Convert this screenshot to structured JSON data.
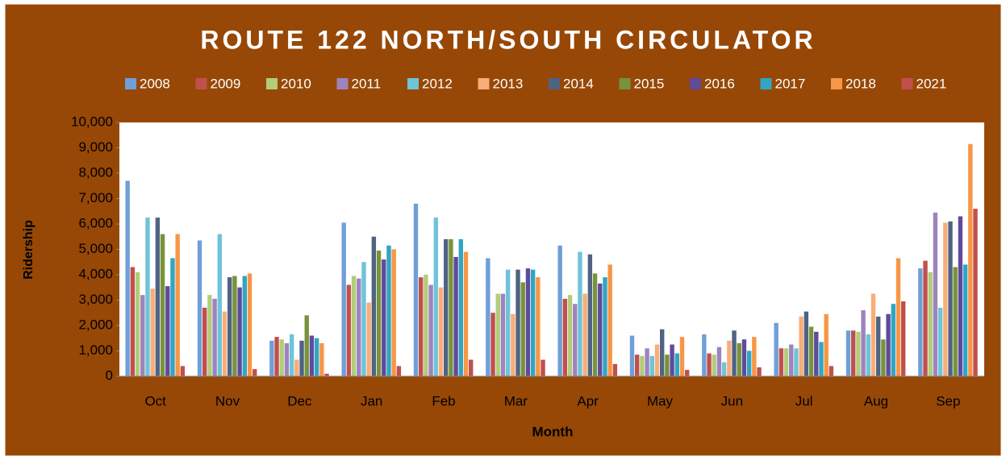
{
  "chart_data": {
    "type": "bar",
    "title": "ROUTE 122  NORTH/SOUTH CIRCULATOR",
    "x_label": "Month",
    "y_label": "Ridership",
    "categories": [
      "Oct",
      "Nov",
      "Dec",
      "Jan",
      "Feb",
      "Mar",
      "Apr",
      "May",
      "Jun",
      "Jul",
      "Aug",
      "Sep"
    ],
    "series": [
      {
        "name": "2008",
        "color": "#6f9fd8",
        "values": [
          7700,
          5350,
          1400,
          6050,
          6800,
          4650,
          5150,
          1600,
          1650,
          2100,
          1800,
          4250
        ]
      },
      {
        "name": "2009",
        "color": "#c0504d",
        "values": [
          4300,
          2700,
          1550,
          3600,
          3900,
          2500,
          3050,
          850,
          900,
          1100,
          1800,
          4550
        ]
      },
      {
        "name": "2010",
        "color": "#b3cc7a",
        "values": [
          4100,
          3200,
          1450,
          3950,
          4000,
          3250,
          3200,
          800,
          850,
          1100,
          1750,
          4100
        ]
      },
      {
        "name": "2011",
        "color": "#9d84bd",
        "values": [
          3200,
          3050,
          1300,
          3850,
          3600,
          3250,
          2850,
          1100,
          1150,
          1250,
          2600,
          6450
        ]
      },
      {
        "name": "2012",
        "color": "#6ec4d9",
        "values": [
          6250,
          5600,
          1650,
          4500,
          6250,
          4200,
          4900,
          800,
          550,
          1100,
          1650,
          2700
        ]
      },
      {
        "name": "2013",
        "color": "#f9ad78",
        "values": [
          3450,
          2550,
          650,
          2900,
          3500,
          2450,
          3250,
          1250,
          1400,
          2350,
          3250,
          6050
        ]
      },
      {
        "name": "2014",
        "color": "#4f6382",
        "values": [
          6250,
          3900,
          1400,
          5500,
          5400,
          4200,
          4800,
          1850,
          1800,
          2550,
          2350,
          6100
        ]
      },
      {
        "name": "2015",
        "color": "#77933c",
        "values": [
          5600,
          3950,
          2400,
          4950,
          5400,
          3700,
          4050,
          850,
          1300,
          1950,
          1450,
          4300
        ]
      },
      {
        "name": "2016",
        "color": "#604a9b",
        "values": [
          3550,
          3500,
          1600,
          4600,
          4700,
          4250,
          3650,
          1250,
          1450,
          1750,
          2450,
          6300
        ]
      },
      {
        "name": "2017",
        "color": "#31a5c4",
        "values": [
          4650,
          3950,
          1500,
          5150,
          5400,
          4200,
          3900,
          900,
          1000,
          1350,
          2850,
          4400
        ]
      },
      {
        "name": "2018",
        "color": "#f79646",
        "values": [
          5600,
          4050,
          1300,
          5000,
          4900,
          3900,
          4400,
          1550,
          1550,
          2450,
          4650,
          9150
        ]
      },
      {
        "name": "2021",
        "color": "#c0504d",
        "values": [
          400,
          280,
          100,
          400,
          650,
          650,
          480,
          250,
          350,
          400,
          2950,
          6600
        ]
      }
    ],
    "ylim": [
      0,
      10000
    ],
    "yticks": [
      0,
      {
        "value": 1000,
        "label": "1,000"
      },
      {
        "value": 2000,
        "label": "2,000"
      },
      {
        "value": 3000,
        "label": "3,000"
      },
      {
        "value": 4000,
        "label": "4,000"
      },
      {
        "value": 5000,
        "label": "5,000"
      },
      {
        "value": 6000,
        "label": "6,000"
      },
      {
        "value": 7000,
        "label": "7,000"
      },
      {
        "value": 8000,
        "label": "8,000"
      },
      {
        "value": 9000,
        "label": "9,000"
      },
      {
        "value": 10000,
        "label": "10,000"
      }
    ],
    "legend": "top"
  }
}
